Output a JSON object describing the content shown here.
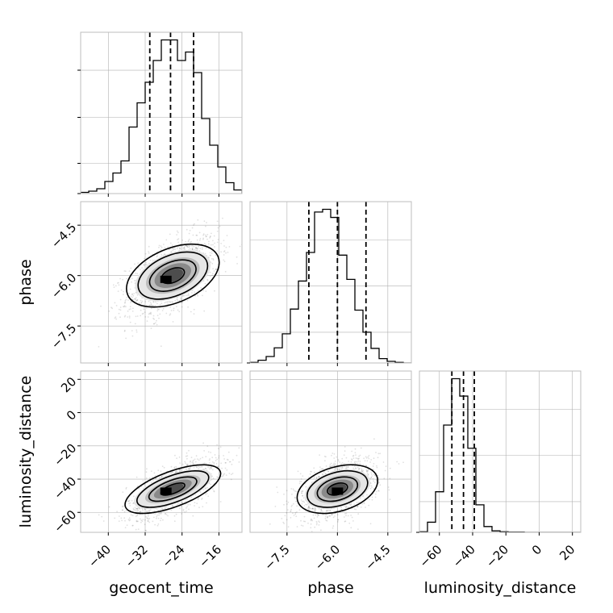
{
  "chart_data": {
    "type": "corner",
    "parameters": [
      "geocent_time",
      "phase",
      "luminosity_distance"
    ],
    "axes": {
      "geocent_time": {
        "range": [
          -46,
          -11
        ],
        "ticks": [
          -40,
          -32,
          -24,
          -16
        ],
        "tick_labels": [
          "−40",
          "−32",
          "−24",
          "−16"
        ]
      },
      "phase": {
        "range": [
          -8.6,
          -3.8
        ],
        "ticks": [
          -7.5,
          -6.0,
          -4.5
        ],
        "tick_labels": [
          "−7.5",
          "−6.0",
          "−4.5"
        ]
      },
      "luminosity_distance": {
        "range": [
          -72,
          25
        ],
        "ticks": [
          -60,
          -40,
          -20,
          0,
          20
        ],
        "tick_labels": [
          "−60",
          "−40",
          "−20",
          "0",
          "20"
        ]
      }
    },
    "histograms": [
      {
        "param": "geocent_time",
        "bin_edges": [
          -46,
          -44.25,
          -42.5,
          -40.75,
          -39,
          -37.25,
          -35.5,
          -33.75,
          -32,
          -30.25,
          -28.5,
          -26.75,
          -25,
          -23.25,
          -21.5,
          -19.75,
          -18,
          -16.25,
          -14.5,
          -12.75,
          -11
        ],
        "counts": [
          1,
          2,
          4,
          10,
          17,
          27,
          55,
          75,
          92,
          110,
          127,
          127,
          110,
          117,
          100,
          62,
          40,
          22,
          9,
          3
        ],
        "quantiles": [
          -31,
          -26.5,
          -21.5
        ]
      },
      {
        "param": "phase",
        "bin_edges": [
          -8.6,
          -8.36,
          -8.12,
          -7.88,
          -7.64,
          -7.4,
          -7.16,
          -6.92,
          -6.68,
          -6.44,
          -6.2,
          -5.96,
          -5.72,
          -5.48,
          -5.24,
          -5.0,
          -4.76,
          -4.52,
          -4.28,
          -4.04,
          -3.8
        ],
        "counts": [
          1,
          5,
          12,
          28,
          54,
          100,
          152,
          205,
          280,
          285,
          270,
          200,
          155,
          98,
          57,
          27,
          8,
          3,
          1,
          0
        ],
        "quantiles": [
          -6.85,
          -6.0,
          -5.15
        ]
      },
      {
        "param": "luminosity_distance",
        "bin_edges": [
          -72,
          -67.15,
          -62.3,
          -57.45,
          -52.6,
          -47.75,
          -42.9,
          -38.05,
          -33.2,
          -28.35,
          -23.5,
          -18.65,
          -13.8,
          -8.95,
          -4.1,
          0.75,
          5.6,
          10.45,
          15.3,
          20.15,
          25
        ],
        "counts": [
          2,
          35,
          140,
          370,
          530,
          470,
          290,
          95,
          20,
          5,
          2,
          1,
          1,
          0,
          0,
          0,
          0,
          0,
          0,
          0
        ],
        "quantiles": [
          -52.5,
          -45.5,
          -39
        ]
      }
    ],
    "scatter_panels": [
      {
        "x": "geocent_time",
        "y": "phase",
        "mean": [
          -26,
          -6.0
        ],
        "sd": [
          5.0,
          0.6
        ],
        "corr": 0.55,
        "peak": [
          -27.5,
          -6.1
        ]
      },
      {
        "x": "geocent_time",
        "y": "luminosity_distance",
        "mean": [
          -26,
          -46
        ],
        "sd": [
          5.0,
          9.0
        ],
        "corr": 0.65,
        "peak": [
          -27.5,
          -47
        ]
      },
      {
        "x": "phase",
        "y": "luminosity_distance",
        "mean": [
          -6.0,
          -46
        ],
        "sd": [
          0.6,
          9.0
        ],
        "corr": 0.45,
        "peak": [
          -6.0,
          -47
        ]
      }
    ],
    "contour_levels_sigma": [
      0.5,
      1.0,
      1.5,
      2.0
    ],
    "grid": true,
    "colors": {
      "line": "#000000",
      "scatter": "#000000",
      "grid": "#b0b0b0",
      "frame": "#bcbcbc"
    }
  }
}
